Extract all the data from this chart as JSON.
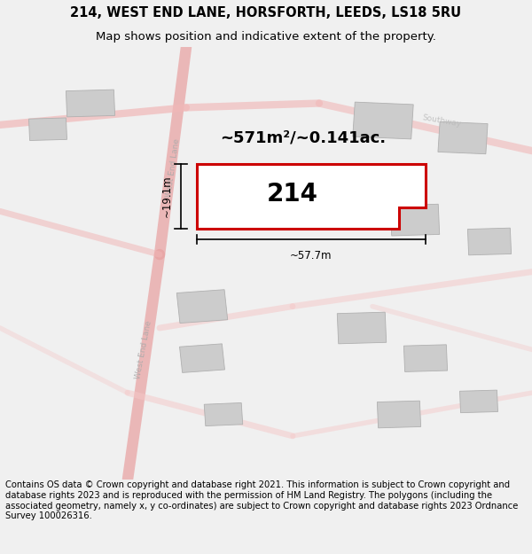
{
  "title_line1": "214, WEST END LANE, HORSFORTH, LEEDS, LS18 5RU",
  "title_line2": "Map shows position and indicative extent of the property.",
  "footer_text": "Contains OS data © Crown copyright and database right 2021. This information is subject to Crown copyright and database rights 2023 and is reproduced with the permission of HM Land Registry. The polygons (including the associated geometry, namely x, y co-ordinates) are subject to Crown copyright and database rights 2023 Ordnance Survey 100026316.",
  "area_label": "~571m²/~0.141ac.",
  "plot_label": "214",
  "width_label": "~57.7m",
  "height_label": "~19.1m",
  "bg_color": "#f0f0f0",
  "map_bg": "#f8f8f8",
  "road_color": "#e8a0a0",
  "road_color2": "#f0b8b8",
  "road_color3": "#f5c8c8",
  "building_color": "#cccccc",
  "building_edge": "#b0b0b0",
  "plot_fill": "#ffffff",
  "plot_edge_color": "#cc0000",
  "plot_edge_width": 2.2,
  "title_fontsize": 10.5,
  "subtitle_fontsize": 9.5,
  "footer_fontsize": 7.2,
  "area_fontsize": 13,
  "plot_num_fontsize": 20,
  "dim_fontsize": 8.5,
  "road_label_fontsize": 6.5,
  "southway_fontsize": 6.5
}
